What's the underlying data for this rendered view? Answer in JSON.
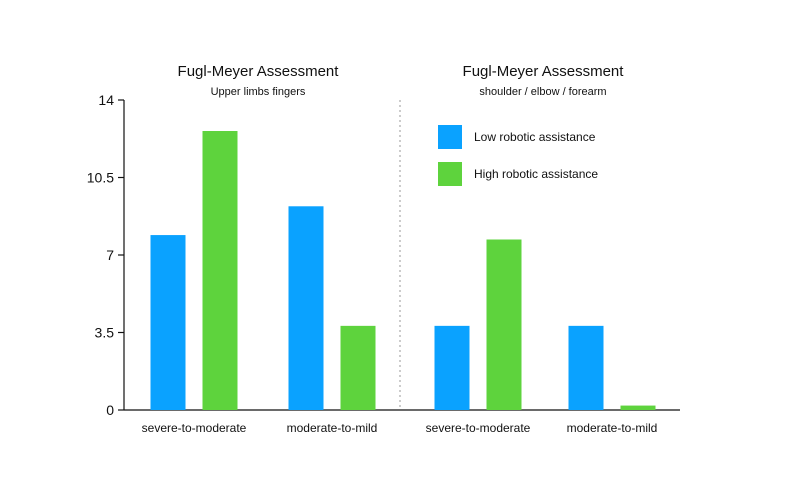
{
  "chart_data": {
    "type": "bar",
    "ylim": [
      0,
      14
    ],
    "yticks": [
      0,
      3.5,
      7,
      10.5,
      14
    ],
    "ytick_labels": [
      "0",
      "3.5",
      "7",
      "10.5",
      "14"
    ],
    "grid": false,
    "legend_position": "top-right",
    "colors": {
      "low": "#0aa2ff",
      "high": "#5ed33d",
      "axis": "#111111",
      "divider": "#9a9a9a"
    },
    "series_names": [
      "Low robotic assistance",
      "High robotic assistance"
    ],
    "panels": [
      {
        "title": "Fugl-Meyer Assessment",
        "subtitle": "Upper limbs fingers",
        "categories": [
          "severe-to-moderate",
          "moderate-to-mild"
        ],
        "series": [
          {
            "name": "Low robotic assistance",
            "values": [
              7.9,
              9.2
            ]
          },
          {
            "name": "High robotic assistance",
            "values": [
              12.6,
              3.8
            ]
          }
        ]
      },
      {
        "title": "Fugl-Meyer Assessment",
        "subtitle": "shoulder / elbow / forearm",
        "categories": [
          "severe-to-moderate",
          "moderate-to-mild"
        ],
        "series": [
          {
            "name": "Low robotic assistance",
            "values": [
              3.8,
              3.8
            ]
          },
          {
            "name": "High robotic assistance",
            "values": [
              7.7,
              0.2
            ]
          }
        ]
      }
    ]
  }
}
